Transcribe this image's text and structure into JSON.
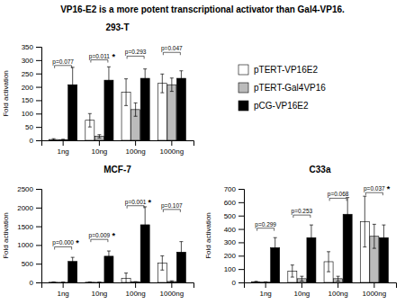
{
  "title": "VP16-E2 is a more potent transcriptional activator than Gal4-VP16.",
  "chart_data": [
    {
      "type": "bar",
      "title": "293-T",
      "ylabel": "Fold activation",
      "categories": [
        "1ng",
        "10ng",
        "100ng",
        "1000ng"
      ],
      "series": [
        {
          "name": "pTERT-VP16E2",
          "color": "white",
          "values": [
            3,
            75,
            180,
            213
          ],
          "errors": [
            3,
            25,
            50,
            35
          ]
        },
        {
          "name": "pTERT-Gal4VP16",
          "color": "#bbbbbb",
          "values": [
            2,
            15,
            115,
            208
          ],
          "errors": [
            2,
            6,
            25,
            25
          ]
        },
        {
          "name": "pCG-VP16E2",
          "color": "black",
          "values": [
            208,
            225,
            232,
            232
          ],
          "errors": [
            65,
            50,
            35,
            28
          ]
        }
      ],
      "ylim": [
        0,
        350
      ],
      "yticks": [
        0,
        50,
        100,
        150,
        200,
        250,
        300,
        350
      ],
      "grid": false,
      "legend": "right",
      "annotations": [
        {
          "category": "1ng",
          "label": "p=0.077",
          "y": 280
        },
        {
          "category": "10ng",
          "label": "p=0.011",
          "y": 301,
          "sign": "*"
        },
        {
          "category": "100ng",
          "label": "p=0.293",
          "y": 315
        },
        {
          "category": "1000ng",
          "label": "p=0.047",
          "y": 329
        }
      ]
    },
    {
      "type": "bar",
      "title": "MCF-7",
      "ylabel": "Fold activation",
      "categories": [
        "1ng",
        "10ng",
        "100ng",
        "1000ng"
      ],
      "series": [
        {
          "name": "pTERT-VP16E2",
          "color": "white",
          "values": [
            5,
            5,
            110,
            520
          ],
          "errors": [
            5,
            5,
            140,
            190
          ]
        },
        {
          "name": "pTERT-Gal4VP16",
          "color": "#bbbbbb",
          "values": [
            2,
            2,
            12,
            25
          ],
          "errors": [
            2,
            2,
            8,
            18
          ]
        },
        {
          "name": "pCG-VP16E2",
          "color": "black",
          "values": [
            560,
            700,
            1540,
            810
          ],
          "errors": [
            110,
            140,
            480,
            280
          ]
        }
      ],
      "ylim": [
        0,
        2500
      ],
      "yticks": [
        0,
        500,
        1000,
        1500,
        2000,
        2500
      ],
      "grid": false,
      "legend": false,
      "annotations": [
        {
          "category": "1ng",
          "label": "p=0.000",
          "y": 950,
          "sign": "*"
        },
        {
          "category": "10ng",
          "label": "p=0.009",
          "y": 1150,
          "sign": "*"
        },
        {
          "category": "100ng",
          "label": "p=0.001",
          "y": 2050,
          "sign": "*"
        },
        {
          "category": "1000ng",
          "label": "p=0.107",
          "y": 1950
        }
      ]
    },
    {
      "type": "bar",
      "title": "C33a",
      "ylabel": "Fold activation",
      "categories": [
        "1ng",
        "10ng",
        "100ng",
        "1000ng"
      ],
      "series": [
        {
          "name": "pTERT-VP16E2",
          "color": "white",
          "values": [
            4,
            85,
            155,
            455
          ],
          "errors": [
            4,
            45,
            75,
            190
          ]
        },
        {
          "name": "pTERT-Gal4VP16",
          "color": "#bbbbbb",
          "values": [
            2,
            28,
            28,
            345
          ],
          "errors": [
            2,
            18,
            18,
            90
          ]
        },
        {
          "name": "pCG-VP16E2",
          "color": "black",
          "values": [
            260,
            335,
            510,
            335
          ],
          "errors": [
            75,
            95,
            125,
            95
          ]
        }
      ],
      "ylim": [
        0,
        700
      ],
      "yticks": [
        0,
        100,
        200,
        300,
        400,
        500,
        600,
        700
      ],
      "grid": false,
      "legend": false,
      "annotations": [
        {
          "category": "1ng",
          "label": "p=0.299",
          "y": 406
        },
        {
          "category": "10ng",
          "label": "p=0.253",
          "y": 504
        },
        {
          "category": "100ng",
          "label": "p=0.068",
          "y": 630
        },
        {
          "category": "1000ng",
          "label": "p=0.037",
          "y": 672,
          "sign": "*"
        }
      ]
    }
  ]
}
